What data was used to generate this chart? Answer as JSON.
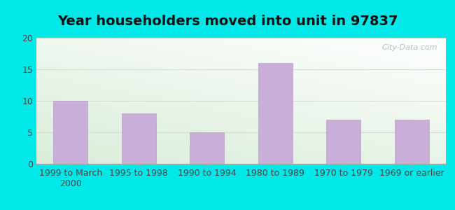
{
  "title": "Year householders moved into unit in 97837",
  "categories": [
    "1999 to March\n2000",
    "1995 to 1998",
    "1990 to 1994",
    "1980 to 1989",
    "1970 to 1979",
    "1969 or earlier"
  ],
  "values": [
    10,
    8,
    5,
    16,
    7,
    7
  ],
  "bar_color": "#c9afd8",
  "bar_edge_color": "#b89ec8",
  "background_outer": "#00e8e8",
  "ylim": [
    0,
    20
  ],
  "yticks": [
    0,
    5,
    10,
    15,
    20
  ],
  "grid_color": "#e0e8e0",
  "title_fontsize": 14,
  "tick_fontsize": 9,
  "watermark_text": "City-Data.com",
  "bg_colors": [
    "#c8e8c8",
    "#f0f5ee",
    "#f5f8f5",
    "#eef4f4"
  ],
  "figsize": [
    6.5,
    3.0
  ],
  "dpi": 100
}
